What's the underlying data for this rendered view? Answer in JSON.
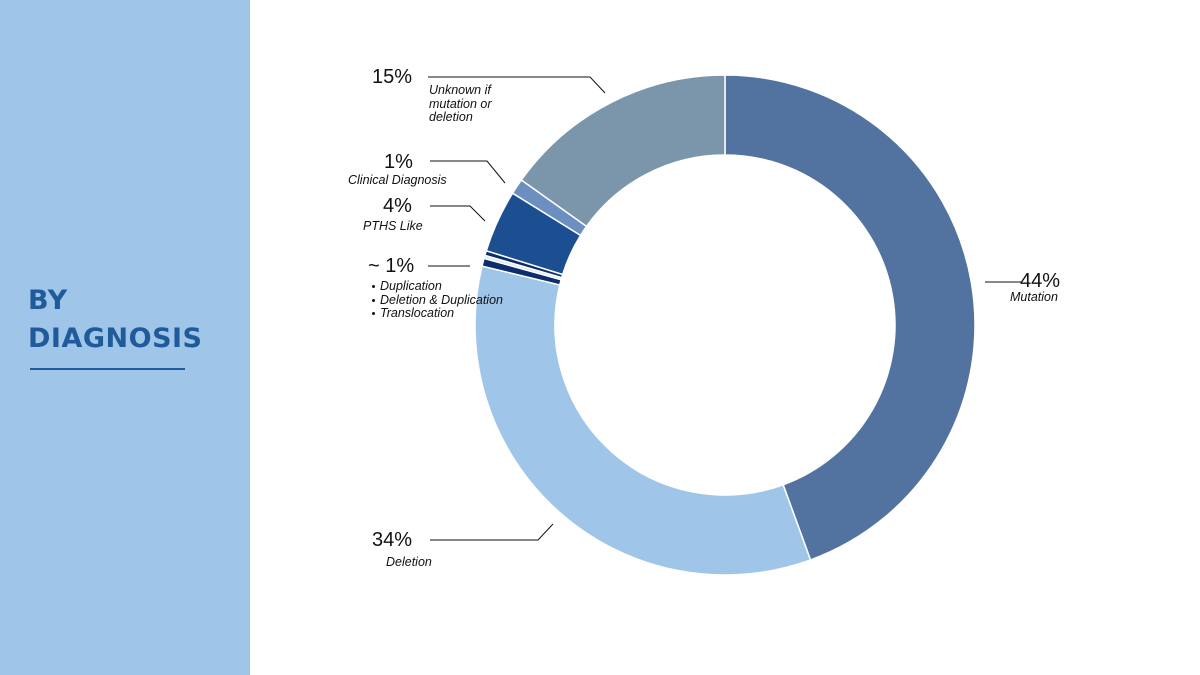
{
  "chart_data": {
    "type": "donut",
    "title": "BY DIAGNOSIS",
    "categories": [
      "Mutation",
      "Deletion",
      "Duplication",
      "Deletion & Duplication",
      "Translocation",
      "PTHS Like",
      "Clinical Diagnosis",
      "Unknown if mutation or deletion"
    ],
    "values": [
      44,
      34,
      0.5,
      0.2,
      0.3,
      4,
      1,
      15
    ],
    "value_labels": [
      "44%",
      "34%",
      null,
      null,
      null,
      "4%",
      "1%",
      "15%"
    ],
    "group_label": "~ 1%",
    "colors": [
      "#52739f",
      "#9fc5e8",
      "#0d2d6b",
      "#dce6f1",
      "#0d2d6b",
      "#1b4f91",
      "#6a8fc0",
      "#7b95ab"
    ]
  }
}
